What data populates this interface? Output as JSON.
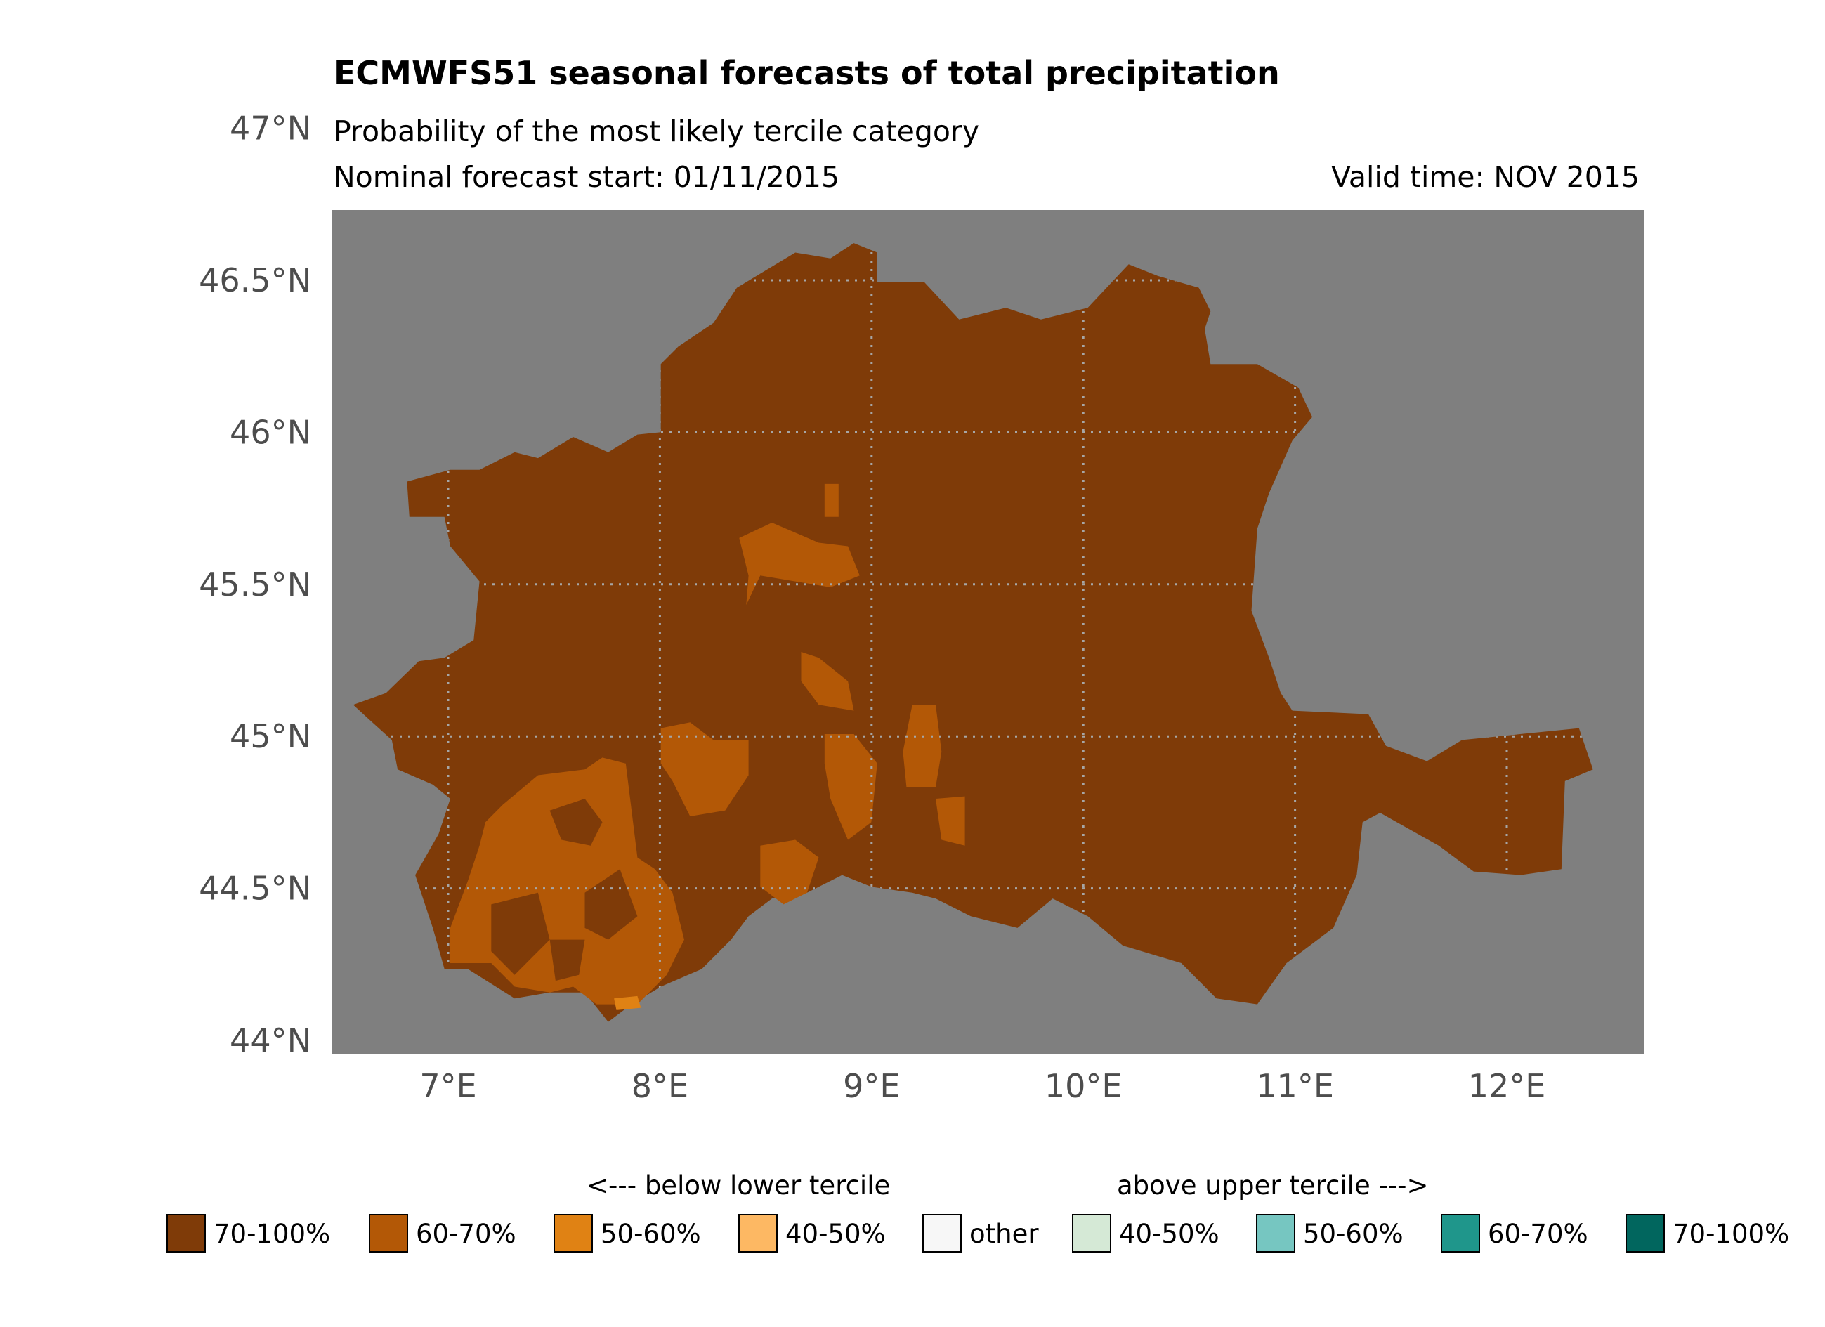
{
  "chart_data": {
    "type": "map",
    "title": "ECMWFS51 seasonal forecasts of total precipitation",
    "subtitle": "Probability of the most likely tercile category",
    "forecast_start": "Nominal forecast start: 01/11/2015",
    "valid_time": "Valid time: NOV 2015",
    "x_ticks": [
      "7°E",
      "8°E",
      "9°E",
      "10°E",
      "11°E",
      "12°E"
    ],
    "y_ticks": [
      "44°N",
      "44.5°N",
      "45°N",
      "45.5°N",
      "46°N",
      "46.5°N",
      "47°N"
    ],
    "xlim": [
      6.45,
      12.65
    ],
    "ylim": [
      43.95,
      46.72
    ],
    "background_color": "#7f7f7f",
    "dominant_category": "below lower tercile 70-100%",
    "secondary_category": "below lower tercile 60-70%",
    "legend": {
      "below_header": "<--- below lower tercile",
      "above_header": "above upper tercile --->",
      "items": [
        {
          "label": "70-100%",
          "color": "#7f3b08"
        },
        {
          "label": "60-70%",
          "color": "#b35806"
        },
        {
          "label": "50-60%",
          "color": "#e08214"
        },
        {
          "label": "40-50%",
          "color": "#fdb863"
        },
        {
          "label": "other",
          "color": "#f7f7f7"
        },
        {
          "label": "40-50%",
          "color": "#d5e9d6"
        },
        {
          "label": "50-60%",
          "color": "#76c6c1"
        },
        {
          "label": "60-70%",
          "color": "#1f968b"
        },
        {
          "label": "70-100%",
          "color": "#01665e"
        }
      ]
    }
  }
}
